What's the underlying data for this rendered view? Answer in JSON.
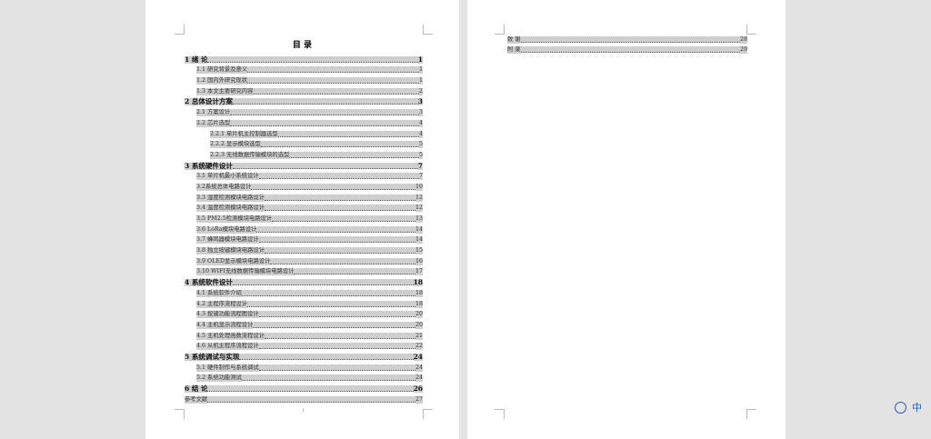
{
  "pages": [
    {
      "title": "目 录",
      "chapters": [
        {
          "text": "1 绪 论",
          "page": 1,
          "sections": [
            {
              "text": "1.1 研究背景及意义",
              "page": 1
            },
            {
              "text": "1.2 国内外研究现状",
              "page": 1
            },
            {
              "text": "1.3 本文主要研究内容",
              "page": 2
            }
          ]
        },
        {
          "text": "2 总体设计方案",
          "page": 3,
          "sections": [
            {
              "text": "2.1 方案设计",
              "page": 3
            },
            {
              "text": "2.2 芯片选型",
              "page": 4,
              "subsections": [
                {
                  "text": "2.2.1  单片机主控制器选型",
                  "page": 4
                },
                {
                  "text": "2.2.2  显示模块选型",
                  "page": 5
                },
                {
                  "text": "2.2.3  无线数据传输模块的选型",
                  "page": 5
                }
              ]
            }
          ]
        },
        {
          "text": "3 系统硬件设计",
          "page": 7,
          "sections": [
            {
              "text": "3.1 单片机最小系统设计",
              "page": 7
            },
            {
              "text": "3.2系统总体电路设计",
              "page": 10
            },
            {
              "text": "3.3 湿度检测模块电路设计",
              "page": 12
            },
            {
              "text": "3.4 温度检测模块电路设计",
              "page": 12
            },
            {
              "text": "3.5 PM2.5检测模块电路设计",
              "page": 13
            },
            {
              "text": "3.6 LoRa模块电路设计",
              "page": 14
            },
            {
              "text": "3.7 蜂鸣器模块电路设计",
              "page": 14
            },
            {
              "text": "3.8 独立按键模块电路设计",
              "page": 15
            },
            {
              "text": "3.9 OLED显示模块电路设计",
              "page": 16
            },
            {
              "text": "3.10 WIFI无线数据传输模块电路设计",
              "page": 17
            }
          ]
        },
        {
          "text": "4 系统软件设计",
          "page": 18,
          "sections": [
            {
              "text": "4.1 系统软件介绍",
              "page": 18
            },
            {
              "text": "4.2 主程序流程设计",
              "page": 18
            },
            {
              "text": "4.3 按键功能流程图设计",
              "page": 20
            },
            {
              "text": "4.4 主机显示流程设计",
              "page": 20
            },
            {
              "text": "4.5 主机处理函数流程设计",
              "page": 21
            },
            {
              "text": "4.6 从机主程序流程设计",
              "page": 22
            }
          ]
        },
        {
          "text": "5 系统调试与实现",
          "page": 24,
          "sections": [
            {
              "text": "5.1 硬件制作与系统调试",
              "page": 24
            },
            {
              "text": "5.2 系统功能测试",
              "page": 24
            }
          ]
        },
        {
          "text": "6 结 论",
          "page": 26,
          "sections": []
        }
      ],
      "back_matter": [
        {
          "text": "参考文献",
          "page": 27
        }
      ],
      "footer": "1"
    },
    {
      "back_matter": [
        {
          "text": "致 谢",
          "page": 28
        },
        {
          "text": "附 录",
          "page": 29
        }
      ]
    }
  ],
  "ime": "中"
}
